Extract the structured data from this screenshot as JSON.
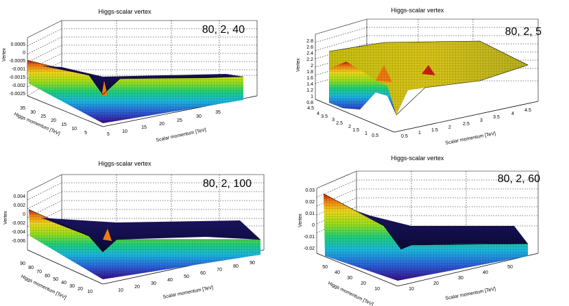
{
  "chart_data": [
    {
      "type": "surface3d",
      "title": "Higgs-scalar vertex",
      "label": "80, 2, 40",
      "xlabel": "Scalar momentum [TeV]",
      "ylabel": "Higgs momentum [TeV]",
      "zlabel": "Vertex",
      "xticks": [
        "5",
        "10",
        "15",
        "20",
        "25",
        "30",
        "35"
      ],
      "yticks": [
        "35",
        "30",
        "25",
        "20",
        "15",
        "10",
        "5"
      ],
      "zticks": [
        "0.0005",
        "0",
        "-0.0005",
        "-0.001",
        "-0.0015",
        "-0.002",
        "-0.0025"
      ],
      "xlim": [
        0,
        38
      ],
      "ylim": [
        0,
        38
      ],
      "zlim": [
        -0.0027,
        0.0006
      ],
      "surface": {
        "front_edge_low": -0.0024,
        "front_edge_high": -0.0008,
        "valley": -0.0011,
        "floor": -0.0015,
        "peak": 0.0002
      }
    },
    {
      "type": "surface3d",
      "title": "Higgs-scalar vertex",
      "label": "80, 2, 5",
      "xlabel": "Scalar momentum [TeV]",
      "ylabel": "Higgs momentum [TeV]",
      "zlabel": "Vertex",
      "xticks": [
        "0.5",
        "1",
        "1.5",
        "2",
        "2.5",
        "3",
        "3.5",
        "4",
        "4.5"
      ],
      "yticks": [
        "4.5",
        "4",
        "3.5",
        "3",
        "2.5",
        "2",
        "1.5",
        "1",
        "0.5"
      ],
      "zticks": [
        "2.8",
        "2.6",
        "2.4",
        "2.2",
        "2",
        "1.8",
        "1.6",
        "1.4",
        "1.2",
        "1",
        "0.8"
      ],
      "xlim": [
        0,
        4.8
      ],
      "ylim": [
        0,
        4.8
      ],
      "zlim": [
        0.7,
        2.9
      ],
      "surface": {
        "front_edge_low": 1.0,
        "front_edge_high": 1.8,
        "valley": 0.9,
        "floor": 2.0,
        "peak": 2.3
      }
    },
    {
      "type": "surface3d",
      "title": "Higgs-scalar vertex",
      "label": "80, 2, 100",
      "xlabel": "Scalar momentum [TeV]",
      "ylabel": "Higgs momentum [TeV]",
      "zlabel": "Vertex",
      "xticks": [
        "10",
        "20",
        "30",
        "40",
        "50",
        "60",
        "70",
        "80",
        "90"
      ],
      "yticks": [
        "90",
        "80",
        "70",
        "60",
        "50",
        "40",
        "30",
        "20",
        "10"
      ],
      "zticks": [
        "0.004",
        "0.002",
        "0",
        "-0.002",
        "-0.004",
        "-0.006"
      ],
      "xlim": [
        0,
        98
      ],
      "ylim": [
        0,
        98
      ],
      "zlim": [
        -0.0072,
        0.0046
      ],
      "surface": {
        "front_edge_low": -0.0065,
        "front_edge_high": -0.0025,
        "valley": -0.0062,
        "floor": -0.0058,
        "peak": -0.002
      }
    },
    {
      "type": "surface3d",
      "title": "Higgs-scalar vertex",
      "label": "80, 2, 60",
      "xlabel": "Scalar momentum [TeV]",
      "ylabel": "Higgs momentum [TeV]",
      "zlabel": "Vertex",
      "xticks": [
        "10",
        "20",
        "30",
        "40",
        "50"
      ],
      "yticks": [
        "50",
        "40",
        "30",
        "20",
        "10"
      ],
      "zticks": [
        "0.03",
        "0.02",
        "0.01",
        "0",
        "-0.01",
        "-0.02"
      ],
      "xlim": [
        0,
        58
      ],
      "ylim": [
        0,
        58
      ],
      "zlim": [
        -0.026,
        0.033
      ],
      "surface": {
        "front_edge_low": -0.022,
        "front_edge_high": -0.008,
        "valley": -0.024,
        "floor": -0.021,
        "peak": 0.026
      }
    }
  ]
}
